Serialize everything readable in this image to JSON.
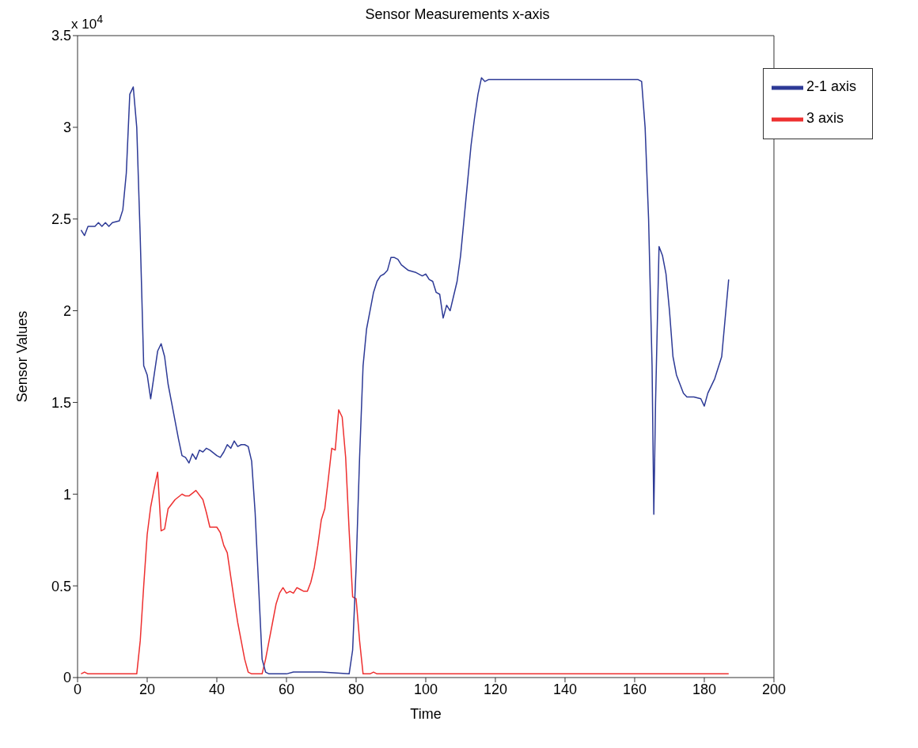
{
  "chart_data": {
    "type": "line",
    "title": "Sensor Measurements x-axis",
    "xlabel": "Time",
    "ylabel": "Sensor Values",
    "annotations": [
      "x 10$^{4}$"
    ],
    "xlim": [
      0,
      200
    ],
    "xticks": [
      0,
      20,
      40,
      60,
      80,
      100,
      120,
      140,
      160,
      180,
      200
    ],
    "ylim": [
      0,
      3.5
    ],
    "yticks": [
      0,
      0.5,
      1,
      1.5,
      2,
      2.5,
      3,
      3.5
    ],
    "grid": false,
    "legend": "top right",
    "line_style": "solid",
    "marker": "none",
    "series": [
      {
        "name": "3 axis",
        "color": "#ee3030",
        "x": [
          1,
          2,
          3,
          17,
          18,
          19,
          20,
          21,
          22,
          23,
          24,
          25,
          26,
          28,
          30,
          31,
          32,
          34,
          36,
          37,
          38,
          40,
          41,
          42,
          43,
          44,
          45,
          46,
          47,
          48,
          49,
          50,
          53,
          54,
          55,
          56,
          57,
          58,
          59,
          60,
          61,
          62,
          63,
          64,
          65,
          66,
          67,
          68,
          69,
          70,
          71,
          72,
          73,
          74,
          75,
          76,
          77,
          78,
          79,
          80,
          81,
          82,
          84,
          85,
          86,
          187
        ],
        "values": [
          0.02,
          0.03,
          0.02,
          0.02,
          0.2,
          0.5,
          0.78,
          0.93,
          1.03,
          1.12,
          0.8,
          0.81,
          0.92,
          0.97,
          1.0,
          0.99,
          0.99,
          1.02,
          0.97,
          0.9,
          0.82,
          0.82,
          0.79,
          0.72,
          0.68,
          0.55,
          0.42,
          0.3,
          0.2,
          0.1,
          0.03,
          0.02,
          0.02,
          0.1,
          0.2,
          0.3,
          0.4,
          0.46,
          0.49,
          0.46,
          0.47,
          0.46,
          0.49,
          0.48,
          0.47,
          0.47,
          0.52,
          0.6,
          0.72,
          0.86,
          0.92,
          1.08,
          1.25,
          1.24,
          1.46,
          1.42,
          1.2,
          0.8,
          0.44,
          0.43,
          0.2,
          0.02,
          0.02,
          0.03,
          0.02,
          0.02
        ]
      },
      {
        "name": "2-1 axis",
        "color": "#2d3a96",
        "x": [
          1,
          2,
          3,
          5,
          6,
          7,
          8,
          9,
          10,
          12,
          13,
          14,
          15,
          16,
          17,
          18,
          19,
          20,
          21,
          22,
          23,
          24,
          25,
          26,
          27,
          28,
          29,
          30,
          31,
          32,
          33,
          34,
          35,
          36,
          37,
          38,
          40,
          41,
          42,
          43,
          44,
          45,
          46,
          47,
          48,
          49,
          50,
          51,
          52,
          53,
          54,
          55,
          60,
          62,
          70,
          78,
          79,
          80,
          81,
          82,
          83,
          84,
          85,
          86,
          87,
          88,
          89,
          90,
          91,
          92,
          93,
          95,
          97,
          99,
          100,
          101,
          102,
          103,
          104,
          105,
          106,
          107,
          108,
          109,
          110,
          111,
          112,
          113,
          114,
          115,
          116,
          117,
          118,
          120,
          140,
          161,
          162,
          163,
          164,
          165,
          165.5,
          166,
          167,
          168,
          169,
          170,
          171,
          172,
          173,
          174,
          175,
          177,
          179,
          180,
          181,
          183,
          185,
          187
        ],
        "values": [
          2.44,
          2.41,
          2.46,
          2.46,
          2.48,
          2.46,
          2.48,
          2.46,
          2.48,
          2.49,
          2.55,
          2.75,
          3.18,
          3.22,
          3.0,
          2.4,
          1.7,
          1.65,
          1.52,
          1.65,
          1.78,
          1.82,
          1.75,
          1.6,
          1.5,
          1.4,
          1.3,
          1.21,
          1.2,
          1.17,
          1.22,
          1.19,
          1.24,
          1.23,
          1.25,
          1.24,
          1.21,
          1.2,
          1.23,
          1.27,
          1.25,
          1.29,
          1.26,
          1.27,
          1.27,
          1.26,
          1.18,
          0.9,
          0.5,
          0.1,
          0.03,
          0.02,
          0.02,
          0.03,
          0.03,
          0.02,
          0.15,
          0.6,
          1.2,
          1.7,
          1.9,
          2.0,
          2.1,
          2.16,
          2.19,
          2.2,
          2.22,
          2.29,
          2.29,
          2.28,
          2.25,
          2.22,
          2.21,
          2.19,
          2.2,
          2.17,
          2.16,
          2.1,
          2.09,
          1.96,
          2.03,
          2.0,
          2.08,
          2.16,
          2.3,
          2.5,
          2.7,
          2.9,
          3.05,
          3.18,
          3.27,
          3.25,
          3.26,
          3.26,
          3.26,
          3.26,
          3.25,
          3.0,
          2.5,
          1.7,
          0.89,
          1.5,
          2.35,
          2.3,
          2.2,
          2.0,
          1.75,
          1.65,
          1.6,
          1.55,
          1.53,
          1.53,
          1.52,
          1.48,
          1.55,
          1.63,
          1.75,
          2.17
        ]
      }
    ]
  }
}
